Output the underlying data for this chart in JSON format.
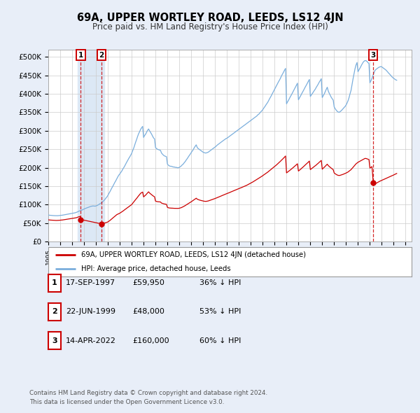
{
  "title": "69A, UPPER WORTLEY ROAD, LEEDS, LS12 4JN",
  "subtitle": "Price paid vs. HM Land Registry's House Price Index (HPI)",
  "ylabel_ticks": [
    "£0",
    "£50K",
    "£100K",
    "£150K",
    "£200K",
    "£250K",
    "£300K",
    "£350K",
    "£400K",
    "£450K",
    "£500K"
  ],
  "ytick_values": [
    0,
    50000,
    100000,
    150000,
    200000,
    250000,
    300000,
    350000,
    400000,
    450000,
    500000
  ],
  "ylim": [
    0,
    520000
  ],
  "xlim_start": 1995.0,
  "xlim_end": 2025.5,
  "background_color": "#e8eef8",
  "plot_bg_color": "#ffffff",
  "grid_color": "#cccccc",
  "hpi_color": "#7aaedc",
  "price_color": "#cc0000",
  "shade_color": "#dce8f5",
  "transactions": [
    {
      "label": "1",
      "date_num": 1997.72,
      "price": 59950
    },
    {
      "label": "2",
      "date_num": 1999.47,
      "price": 48000
    },
    {
      "label": "3",
      "date_num": 2022.28,
      "price": 160000
    }
  ],
  "legend_entry1": "69A, UPPER WORTLEY ROAD, LEEDS, LS12 4JN (detached house)",
  "legend_entry2": "HPI: Average price, detached house, Leeds",
  "table_rows": [
    {
      "num": "1",
      "date": "17-SEP-1997",
      "price": "£59,950",
      "note": "36% ↓ HPI"
    },
    {
      "num": "2",
      "date": "22-JUN-1999",
      "price": "£48,000",
      "note": "53% ↓ HPI"
    },
    {
      "num": "3",
      "date": "14-APR-2022",
      "price": "£160,000",
      "note": "60% ↓ HPI"
    }
  ],
  "footnote1": "Contains HM Land Registry data © Crown copyright and database right 2024.",
  "footnote2": "This data is licensed under the Open Government Licence v3.0.",
  "hpi_data_years": [
    1995.0,
    1995.08,
    1995.17,
    1995.25,
    1995.33,
    1995.42,
    1995.5,
    1995.58,
    1995.67,
    1995.75,
    1995.83,
    1995.92,
    1996.0,
    1996.08,
    1996.17,
    1996.25,
    1996.33,
    1996.42,
    1996.5,
    1996.58,
    1996.67,
    1996.75,
    1996.83,
    1996.92,
    1997.0,
    1997.08,
    1997.17,
    1997.25,
    1997.33,
    1997.42,
    1997.5,
    1997.58,
    1997.67,
    1997.75,
    1997.83,
    1997.92,
    1998.0,
    1998.08,
    1998.17,
    1998.25,
    1998.33,
    1998.42,
    1998.5,
    1998.58,
    1998.67,
    1998.75,
    1998.83,
    1998.92,
    1999.0,
    1999.08,
    1999.17,
    1999.25,
    1999.33,
    1999.42,
    1999.5,
    1999.58,
    1999.67,
    1999.75,
    1999.83,
    1999.92,
    2000.0,
    2000.08,
    2000.17,
    2000.25,
    2000.33,
    2000.42,
    2000.5,
    2000.58,
    2000.67,
    2000.75,
    2000.83,
    2000.92,
    2001.0,
    2001.08,
    2001.17,
    2001.25,
    2001.33,
    2001.42,
    2001.5,
    2001.58,
    2001.67,
    2001.75,
    2001.83,
    2001.92,
    2002.0,
    2002.08,
    2002.17,
    2002.25,
    2002.33,
    2002.42,
    2002.5,
    2002.58,
    2002.67,
    2002.75,
    2002.83,
    2002.92,
    2003.0,
    2003.08,
    2003.17,
    2003.25,
    2003.33,
    2003.42,
    2003.5,
    2003.58,
    2003.67,
    2003.75,
    2003.83,
    2003.92,
    2004.0,
    2004.08,
    2004.17,
    2004.25,
    2004.33,
    2004.42,
    2004.5,
    2004.58,
    2004.67,
    2004.75,
    2004.83,
    2004.92,
    2005.0,
    2005.08,
    2005.17,
    2005.25,
    2005.33,
    2005.42,
    2005.5,
    2005.58,
    2005.67,
    2005.75,
    2005.83,
    2005.92,
    2006.0,
    2006.08,
    2006.17,
    2006.25,
    2006.33,
    2006.42,
    2006.5,
    2006.58,
    2006.67,
    2006.75,
    2006.83,
    2006.92,
    2007.0,
    2007.08,
    2007.17,
    2007.25,
    2007.33,
    2007.42,
    2007.5,
    2007.58,
    2007.67,
    2007.75,
    2007.83,
    2007.92,
    2008.0,
    2008.08,
    2008.17,
    2008.25,
    2008.33,
    2008.42,
    2008.5,
    2008.58,
    2008.67,
    2008.75,
    2008.83,
    2008.92,
    2009.0,
    2009.08,
    2009.17,
    2009.25,
    2009.33,
    2009.42,
    2009.5,
    2009.58,
    2009.67,
    2009.75,
    2009.83,
    2009.92,
    2010.0,
    2010.08,
    2010.17,
    2010.25,
    2010.33,
    2010.42,
    2010.5,
    2010.58,
    2010.67,
    2010.75,
    2010.83,
    2010.92,
    2011.0,
    2011.08,
    2011.17,
    2011.25,
    2011.33,
    2011.42,
    2011.5,
    2011.58,
    2011.67,
    2011.75,
    2011.83,
    2011.92,
    2012.0,
    2012.08,
    2012.17,
    2012.25,
    2012.33,
    2012.42,
    2012.5,
    2012.58,
    2012.67,
    2012.75,
    2012.83,
    2012.92,
    2013.0,
    2013.08,
    2013.17,
    2013.25,
    2013.33,
    2013.42,
    2013.5,
    2013.58,
    2013.67,
    2013.75,
    2013.83,
    2013.92,
    2014.0,
    2014.08,
    2014.17,
    2014.25,
    2014.33,
    2014.42,
    2014.5,
    2014.58,
    2014.67,
    2014.75,
    2014.83,
    2014.92,
    2015.0,
    2015.08,
    2015.17,
    2015.25,
    2015.33,
    2015.42,
    2015.5,
    2015.58,
    2015.67,
    2015.75,
    2015.83,
    2015.92,
    2016.0,
    2016.08,
    2016.17,
    2016.25,
    2016.33,
    2016.42,
    2016.5,
    2016.58,
    2016.67,
    2016.75,
    2016.83,
    2016.92,
    2017.0,
    2017.08,
    2017.17,
    2017.25,
    2017.33,
    2017.42,
    2017.5,
    2017.58,
    2017.67,
    2017.75,
    2017.83,
    2017.92,
    2018.0,
    2018.08,
    2018.17,
    2018.25,
    2018.33,
    2018.42,
    2018.5,
    2018.58,
    2018.67,
    2018.75,
    2018.83,
    2018.92,
    2019.0,
    2019.08,
    2019.17,
    2019.25,
    2019.33,
    2019.42,
    2019.5,
    2019.58,
    2019.67,
    2019.75,
    2019.83,
    2019.92,
    2020.0,
    2020.08,
    2020.17,
    2020.25,
    2020.33,
    2020.42,
    2020.5,
    2020.58,
    2020.67,
    2020.75,
    2020.83,
    2020.92,
    2021.0,
    2021.08,
    2021.17,
    2021.25,
    2021.33,
    2021.42,
    2021.5,
    2021.58,
    2021.67,
    2021.75,
    2021.83,
    2021.92,
    2022.0,
    2022.08,
    2022.17,
    2022.25,
    2022.33,
    2022.42,
    2022.5,
    2022.58,
    2022.67,
    2022.75,
    2022.83,
    2022.92,
    2023.0,
    2023.08,
    2023.17,
    2023.25,
    2023.33,
    2023.42,
    2023.5,
    2023.58,
    2023.67,
    2023.75,
    2023.83,
    2023.92,
    2024.0,
    2024.08,
    2024.17,
    2024.25
  ],
  "hpi_data_values": [
    72000,
    71500,
    71200,
    71000,
    70800,
    70500,
    70300,
    70200,
    70000,
    70100,
    70300,
    70500,
    71000,
    71200,
    71500,
    72000,
    72500,
    73000,
    73500,
    74000,
    74500,
    75000,
    75500,
    76000,
    76500,
    77000,
    77500,
    78000,
    79000,
    80000,
    81500,
    82500,
    83500,
    84500,
    85500,
    87000,
    88000,
    89500,
    90500,
    91500,
    92500,
    93500,
    94500,
    95500,
    96000,
    96500,
    96200,
    96000,
    96500,
    97500,
    99000,
    100500,
    102500,
    104000,
    106000,
    108500,
    111000,
    114000,
    117500,
    121000,
    125000,
    130000,
    135000,
    140000,
    145000,
    150000,
    155000,
    160000,
    165000,
    170000,
    175000,
    180000,
    183000,
    187000,
    191000,
    196000,
    200000,
    205000,
    210000,
    215000,
    220000,
    225000,
    229000,
    234000,
    239000,
    246000,
    253000,
    261000,
    269000,
    277000,
    285000,
    292000,
    298000,
    304000,
    308000,
    312000,
    282000,
    287000,
    291000,
    296000,
    301000,
    305000,
    300000,
    296000,
    291000,
    286000,
    281000,
    278000,
    255000,
    252000,
    250000,
    249000,
    248000,
    247000,
    240000,
    237000,
    234000,
    232000,
    231000,
    230000,
    210000,
    207000,
    205000,
    204000,
    204000,
    203000,
    202000,
    202000,
    201000,
    201000,
    200000,
    200000,
    201000,
    203000,
    205000,
    208000,
    210000,
    214000,
    217000,
    221000,
    225000,
    229000,
    233000,
    237000,
    241000,
    245000,
    249000,
    254000,
    258000,
    262000,
    255000,
    252000,
    250000,
    248000,
    246000,
    244000,
    242000,
    241000,
    240000,
    240000,
    241000,
    242000,
    244000,
    246000,
    248000,
    250000,
    252000,
    254000,
    256000,
    258000,
    261000,
    263000,
    265000,
    267000,
    269000,
    271000,
    273000,
    275000,
    277000,
    279000,
    280000,
    282000,
    284000,
    286000,
    288000,
    290000,
    292000,
    294000,
    296000,
    298000,
    300000,
    302000,
    304000,
    306000,
    308000,
    310000,
    312000,
    314000,
    316000,
    318000,
    320000,
    322000,
    324000,
    326000,
    328000,
    330000,
    332000,
    334000,
    336000,
    338000,
    340000,
    343000,
    345000,
    348000,
    351000,
    354000,
    357000,
    361000,
    365000,
    369000,
    373000,
    377000,
    382000,
    387000,
    392000,
    397000,
    402000,
    408000,
    413000,
    418000,
    423000,
    428000,
    433000,
    438000,
    443000,
    449000,
    454000,
    459000,
    464000,
    469000,
    373000,
    378000,
    383000,
    388000,
    393000,
    398000,
    403000,
    408000,
    414000,
    419000,
    424000,
    429000,
    384000,
    389000,
    394000,
    399000,
    404000,
    409000,
    414000,
    419000,
    424000,
    429000,
    434000,
    439000,
    393000,
    397000,
    401000,
    405000,
    409000,
    413000,
    418000,
    422000,
    427000,
    432000,
    436000,
    441000,
    390000,
    395000,
    400000,
    406000,
    412000,
    418000,
    408000,
    402000,
    396000,
    391000,
    387000,
    383000,
    365000,
    360000,
    356000,
    353000,
    351000,
    350000,
    352000,
    354000,
    357000,
    360000,
    363000,
    366000,
    370000,
    375000,
    382000,
    390000,
    400000,
    410000,
    425000,
    440000,
    455000,
    468000,
    478000,
    485000,
    460000,
    465000,
    470000,
    475000,
    480000,
    485000,
    488000,
    490000,
    490000,
    488000,
    485000,
    482000,
    430000,
    435000,
    442000,
    449000,
    456000,
    463000,
    466000,
    468000,
    470000,
    472000,
    473000,
    474000,
    473000,
    471000,
    469000,
    467000,
    465000,
    462000,
    459000,
    456000,
    453000,
    450000,
    447000,
    444000,
    442000,
    440000,
    438000,
    437000
  ],
  "price_indexed_years": [
    1995.0,
    1995.08,
    1995.17,
    1995.25,
    1995.33,
    1995.42,
    1995.5,
    1995.58,
    1995.67,
    1995.75,
    1995.83,
    1995.92,
    1996.0,
    1996.08,
    1996.17,
    1996.25,
    1996.33,
    1996.42,
    1996.5,
    1996.58,
    1996.67,
    1996.75,
    1996.83,
    1996.92,
    1997.0,
    1997.08,
    1997.17,
    1997.25,
    1997.33,
    1997.42,
    1997.5,
    1997.58,
    1997.67,
    1997.72,
    1999.47,
    1999.5,
    1999.58,
    1999.67,
    1999.75,
    1999.83,
    1999.92,
    2000.0,
    2000.08,
    2000.17,
    2000.25,
    2000.33,
    2000.42,
    2000.5,
    2000.58,
    2000.67,
    2000.75,
    2000.83,
    2000.92,
    2001.0,
    2001.08,
    2001.17,
    2001.25,
    2001.33,
    2001.42,
    2001.5,
    2001.58,
    2001.67,
    2001.75,
    2001.83,
    2001.92,
    2002.0,
    2002.08,
    2002.17,
    2002.25,
    2002.33,
    2002.42,
    2002.5,
    2002.58,
    2002.67,
    2002.75,
    2002.83,
    2002.92,
    2003.0,
    2003.08,
    2003.17,
    2003.25,
    2003.33,
    2003.42,
    2003.5,
    2003.58,
    2003.67,
    2003.75,
    2003.83,
    2003.92,
    2004.0,
    2004.08,
    2004.17,
    2004.25,
    2004.33,
    2004.42,
    2004.5,
    2004.58,
    2004.67,
    2004.75,
    2004.83,
    2004.92,
    2005.0,
    2005.08,
    2005.17,
    2005.25,
    2005.33,
    2005.42,
    2005.5,
    2005.58,
    2005.67,
    2005.75,
    2005.83,
    2005.92,
    2006.0,
    2006.08,
    2006.17,
    2006.25,
    2006.33,
    2006.42,
    2006.5,
    2006.58,
    2006.67,
    2006.75,
    2006.83,
    2006.92,
    2007.0,
    2007.08,
    2007.17,
    2007.25,
    2007.33,
    2007.42,
    2007.5,
    2007.58,
    2007.67,
    2007.75,
    2007.83,
    2007.92,
    2008.0,
    2008.08,
    2008.17,
    2008.25,
    2008.33,
    2008.42,
    2008.5,
    2008.58,
    2008.67,
    2008.75,
    2008.83,
    2008.92,
    2009.0,
    2009.08,
    2009.17,
    2009.25,
    2009.33,
    2009.42,
    2009.5,
    2009.58,
    2009.67,
    2009.75,
    2009.83,
    2009.92,
    2010.0,
    2010.08,
    2010.17,
    2010.25,
    2010.33,
    2010.42,
    2010.5,
    2010.58,
    2010.67,
    2010.75,
    2010.83,
    2010.92,
    2011.0,
    2011.08,
    2011.17,
    2011.25,
    2011.33,
    2011.42,
    2011.5,
    2011.58,
    2011.67,
    2011.75,
    2011.83,
    2011.92,
    2012.0,
    2012.08,
    2012.17,
    2012.25,
    2012.33,
    2012.42,
    2012.5,
    2012.58,
    2012.67,
    2012.75,
    2012.83,
    2012.92,
    2013.0,
    2013.08,
    2013.17,
    2013.25,
    2013.33,
    2013.42,
    2013.5,
    2013.58,
    2013.67,
    2013.75,
    2013.83,
    2013.92,
    2014.0,
    2014.08,
    2014.17,
    2014.25,
    2014.33,
    2014.42,
    2014.5,
    2014.58,
    2014.67,
    2014.75,
    2014.83,
    2014.92,
    2015.0,
    2015.08,
    2015.17,
    2015.25,
    2015.33,
    2015.42,
    2015.5,
    2015.58,
    2015.67,
    2015.75,
    2015.83,
    2015.92,
    2016.0,
    2016.08,
    2016.17,
    2016.25,
    2016.33,
    2016.42,
    2016.5,
    2016.58,
    2016.67,
    2016.75,
    2016.83,
    2016.92,
    2017.0,
    2017.08,
    2017.17,
    2017.25,
    2017.33,
    2017.42,
    2017.5,
    2017.58,
    2017.67,
    2017.75,
    2017.83,
    2017.92,
    2018.0,
    2018.08,
    2018.17,
    2018.25,
    2018.33,
    2018.42,
    2018.5,
    2018.58,
    2018.67,
    2018.75,
    2018.83,
    2018.92,
    2019.0,
    2019.08,
    2019.17,
    2019.25,
    2019.33,
    2019.42,
    2019.5,
    2019.58,
    2019.67,
    2019.75,
    2019.83,
    2019.92,
    2020.0,
    2020.08,
    2020.17,
    2020.25,
    2020.33,
    2020.42,
    2020.5,
    2020.58,
    2020.67,
    2020.75,
    2020.83,
    2020.92,
    2021.0,
    2021.08,
    2021.17,
    2021.25,
    2021.33,
    2021.42,
    2021.5,
    2021.58,
    2021.67,
    2021.75,
    2021.83,
    2021.92,
    2022.0,
    2022.08,
    2022.17,
    2022.28,
    2022.33,
    2022.42,
    2022.5,
    2022.58,
    2022.67,
    2022.75,
    2022.83,
    2022.92,
    2023.0,
    2023.08,
    2023.17,
    2023.25,
    2023.33,
    2023.42,
    2023.5,
    2023.58,
    2023.67,
    2023.75,
    2023.83,
    2023.92,
    2024.0,
    2024.08,
    2024.17,
    2024.25
  ],
  "price_indexed_values": [
    59000,
    58600,
    58300,
    58200,
    58000,
    57800,
    57600,
    57500,
    57300,
    57400,
    57600,
    57700,
    58100,
    58300,
    58500,
    58900,
    59300,
    59700,
    60100,
    60500,
    60900,
    61300,
    61700,
    62100,
    62500,
    62900,
    63300,
    63700,
    64500,
    65400,
    66600,
    67500,
    68300,
    59950,
    48000,
    48200,
    48800,
    49600,
    50500,
    51400,
    52300,
    53200,
    55000,
    57200,
    59400,
    61700,
    63900,
    66200,
    68500,
    70800,
    73000,
    74300,
    75600,
    76900,
    78600,
    80300,
    82300,
    84300,
    86300,
    88300,
    90300,
    92300,
    94300,
    96300,
    98300,
    100300,
    103600,
    107000,
    110400,
    113800,
    117200,
    120600,
    124000,
    127400,
    130800,
    132500,
    134200,
    121000,
    123400,
    125800,
    128800,
    131800,
    134800,
    131600,
    129400,
    127200,
    125000,
    123000,
    121500,
    109600,
    108800,
    108100,
    107800,
    107500,
    107300,
    104400,
    103500,
    102600,
    101900,
    101500,
    101000,
    92700,
    91700,
    91000,
    90700,
    90600,
    90500,
    90200,
    90100,
    90000,
    90000,
    90000,
    90000,
    90400,
    91200,
    92000,
    93300,
    94500,
    96100,
    97700,
    99400,
    101000,
    102700,
    104500,
    106200,
    107900,
    109700,
    111500,
    113500,
    115500,
    117500,
    115000,
    113900,
    112800,
    112000,
    111300,
    110600,
    109800,
    109400,
    109000,
    109000,
    109500,
    110000,
    110900,
    111800,
    112700,
    113700,
    114700,
    115700,
    116700,
    117700,
    118800,
    120000,
    121100,
    122200,
    123300,
    124500,
    125600,
    126800,
    127900,
    129100,
    130000,
    131100,
    132200,
    133300,
    134500,
    135600,
    136800,
    137900,
    139000,
    140100,
    141200,
    142400,
    143500,
    144600,
    145700,
    146800,
    147900,
    149000,
    150100,
    151400,
    152700,
    154100,
    155500,
    157000,
    158400,
    159900,
    161500,
    163100,
    164700,
    166300,
    167900,
    169600,
    171300,
    173100,
    174900,
    176700,
    178500,
    180300,
    182200,
    184100,
    186100,
    188100,
    190200,
    192300,
    194400,
    196600,
    198800,
    201100,
    203300,
    205600,
    208000,
    210400,
    212800,
    215300,
    217900,
    220600,
    223300,
    226100,
    228900,
    231800,
    186000,
    188000,
    190000,
    192200,
    194400,
    196700,
    198900,
    201200,
    203600,
    205900,
    208300,
    210700,
    191000,
    193300,
    195600,
    198000,
    200400,
    202800,
    205300,
    207800,
    210300,
    212800,
    215400,
    218100,
    195000,
    197000,
    199000,
    201000,
    203200,
    205400,
    207600,
    210000,
    212400,
    214900,
    217300,
    219800,
    196000,
    198700,
    201400,
    204100,
    206900,
    209700,
    206000,
    203600,
    201200,
    198900,
    196900,
    194900,
    186000,
    183900,
    181900,
    180400,
    179500,
    179000,
    179500,
    180300,
    181200,
    182200,
    183300,
    184400,
    185700,
    187000,
    188700,
    190700,
    192800,
    195000,
    198000,
    201200,
    204500,
    207600,
    210400,
    212700,
    214800,
    216200,
    217600,
    219100,
    220600,
    222100,
    223600,
    225100,
    225100,
    224200,
    223200,
    222200,
    199000,
    200900,
    203100,
    160000,
    158000,
    156500,
    157500,
    159000,
    160500,
    162000,
    163500,
    164900,
    166000,
    167200,
    168400,
    169600,
    170800,
    172100,
    173300,
    174500,
    175700,
    176900,
    178100,
    179300,
    180600,
    181900,
    183200,
    184500
  ]
}
